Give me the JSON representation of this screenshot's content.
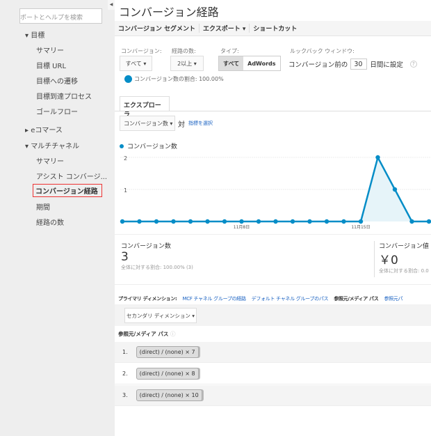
{
  "sidebar": {
    "search_placeholder": "ポートとヘルプを検索",
    "items": [
      {
        "label": "▾ 目標"
      },
      {
        "label": "サマリー"
      },
      {
        "label": "目標 URL"
      },
      {
        "label": "目標への遷移"
      },
      {
        "label": "目標到達プロセス"
      },
      {
        "label": "ゴールフロー"
      },
      {
        "label": "▸ eコマース"
      },
      {
        "label": "▾ マルチチャネル"
      },
      {
        "label": "サマリー"
      },
      {
        "label": "アシスト コンバージ..."
      },
      {
        "label": "コンバージョン経路"
      },
      {
        "label": "期間"
      },
      {
        "label": "経路の数"
      }
    ]
  },
  "header": {
    "title": "コンバージョン経路"
  },
  "toolbar": {
    "segment": "コンバージョン セグメント",
    "export": "エクスポート ▾",
    "shortcut": "ショートカット"
  },
  "filters": {
    "conversion_label": "コンバージョン:",
    "conversion_value": "すべて ▾",
    "path_label": "経路の数:",
    "path_value": "2以上 ▾",
    "type_label": "タイプ:",
    "type_options": [
      "すべて",
      "AdWords"
    ],
    "type_selected": "すべて",
    "lookback_label": "ルックバック ウィンドウ:",
    "lookback_prefix": "コンバージョン前の",
    "lookback_days": "30",
    "lookback_suffix": "日間に設定",
    "help": "?",
    "ratio": "コンバージョン数の割合: 100.00%"
  },
  "explorer": {
    "tab": "エクスプローラ",
    "metric": "コンバージョン数 ▾",
    "vs": "対",
    "select_metric": "指標を選択"
  },
  "chart_data": {
    "type": "area",
    "legend": "コンバージョン数",
    "values": [
      0,
      0,
      0,
      0,
      0,
      0,
      0,
      0,
      0,
      0,
      0,
      0,
      0,
      0,
      0,
      2,
      1,
      0,
      0
    ],
    "x_tick_labels": [
      {
        "index": 7,
        "label": "11月8日"
      },
      {
        "index": 14,
        "label": "11月15日"
      }
    ],
    "y_ticks": [
      "1",
      "2"
    ],
    "ylim": [
      0,
      2
    ],
    "color": "#058dc7"
  },
  "metrics": [
    {
      "label": "コンバージョン数",
      "value": "3",
      "sub": "全体に対する割合: 100.00% (3)"
    },
    {
      "label": "コンバージョン値",
      "value": "￥0",
      "sub": "全体に対する割合: 0.0"
    }
  ],
  "dimensions": {
    "label": "プライマリ ディメンション:",
    "options": [
      "MCF チャネル グループの経路",
      "デフォルト チャネル グループのパス",
      "参照元/メディア パス",
      "参照元パ"
    ],
    "selected": "参照元/メディア パス",
    "secondary": "セカンダリ ディメンション ▾"
  },
  "table": {
    "header": "参照元/メディア パス",
    "rows": [
      {
        "num": "1.",
        "path": "(direct) / (none) × 7"
      },
      {
        "num": "2.",
        "path": "(direct) / (none) × 8"
      },
      {
        "num": "3.",
        "path": "(direct) / (none) × 10"
      }
    ]
  }
}
